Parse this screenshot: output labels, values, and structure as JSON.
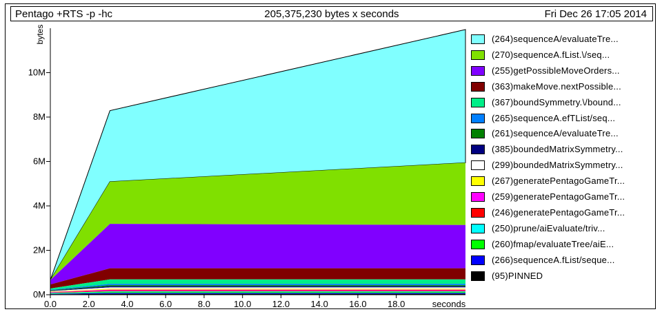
{
  "header": {
    "program": "Pentago +RTS -p -hc",
    "total": "205,375,230 bytes x seconds",
    "date": "Fri Dec 26 17:05 2014"
  },
  "chart_data": {
    "type": "area",
    "stacked": true,
    "ylabel": "bytes",
    "xlabel": "seconds",
    "xlim": [
      0,
      21.6
    ],
    "ylim": [
      0,
      12000000
    ],
    "x_ticks": [
      "0.0",
      "2.0",
      "4.0",
      "6.0",
      "8.0",
      "10.0",
      "12.0",
      "14.0",
      "16.0",
      "18.0"
    ],
    "y_ticks": [
      "0M",
      "2M",
      "4M",
      "6M",
      "8M",
      "10M"
    ],
    "x": [
      0,
      3.1,
      21.6
    ],
    "series": [
      {
        "name": "(95)PINNED",
        "color": "#000000",
        "values": [
          20000,
          40000,
          40000
        ]
      },
      {
        "name": "(266)sequenceA.fList/seque...",
        "color": "#0000ff",
        "values": [
          20000,
          40000,
          40000
        ]
      },
      {
        "name": "(260)fmap/evaluateTree/aiE...",
        "color": "#00ff00",
        "values": [
          20000,
          40000,
          40000
        ]
      },
      {
        "name": "(250)prune/aiEvaluate/triv...",
        "color": "#00ffff",
        "values": [
          20000,
          30000,
          30000
        ]
      },
      {
        "name": "(246)generatePentagoGameTr...",
        "color": "#ff0000",
        "values": [
          20000,
          40000,
          40000
        ]
      },
      {
        "name": "(259)generatePentagoGameTr...",
        "color": "#ff00ff",
        "values": [
          20000,
          40000,
          40000
        ]
      },
      {
        "name": "(267)generatePentagoGameTr...",
        "color": "#ffff00",
        "values": [
          20000,
          40000,
          40000
        ]
      },
      {
        "name": "(299)boundedMatrixSymmetry...",
        "color": "#ffffff",
        "values": [
          20000,
          60000,
          60000
        ]
      },
      {
        "name": "(385)boundedMatrixSymmetry...",
        "color": "#000080",
        "values": [
          20000,
          50000,
          50000
        ]
      },
      {
        "name": "(261)sequenceA/evaluateTre...",
        "color": "#008000",
        "values": [
          20000,
          50000,
          50000
        ]
      },
      {
        "name": "(265)sequenceA.efTList/seq...",
        "color": "#0080ff",
        "values": [
          20000,
          60000,
          60000
        ]
      },
      {
        "name": "(367)boundSymmetry.\\/bound...",
        "color": "#00ee88",
        "values": [
          60000,
          200000,
          200000
        ]
      },
      {
        "name": "(363)makeMove.nextPossible...",
        "color": "#800000",
        "values": [
          180000,
          500000,
          500000
        ]
      },
      {
        "name": "(255)getPossibleMoveOrders...",
        "color": "#8000ff",
        "values": [
          200000,
          2000000,
          1950000
        ]
      },
      {
        "name": "(270)sequenceA.fList.\\/seq...",
        "color": "#80e000",
        "values": [
          0,
          1900000,
          2800000
        ]
      },
      {
        "name": "(264)sequenceA/evaluateTre...",
        "color": "#80ffff",
        "values": [
          0,
          3200000,
          6000000
        ]
      }
    ]
  }
}
